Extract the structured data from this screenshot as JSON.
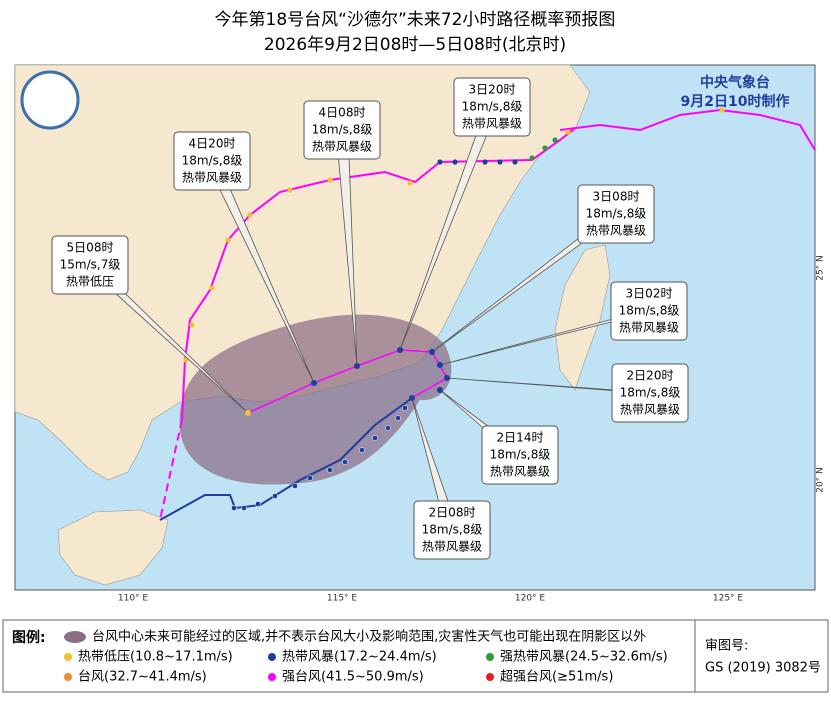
{
  "header": {
    "title": "今年第18号台风“沙德尔”未来72小时路径概率预报图",
    "subtitle": "2026年9月2日08时—5日08时(北京时)"
  },
  "agency": {
    "name": "中央气象台",
    "issued": "9月2日10时制作"
  },
  "callouts": [
    {
      "time": "5日08时",
      "wind": "15m/s,7级",
      "grade": "热带低压"
    },
    {
      "time": "4日20时",
      "wind": "18m/s,8级",
      "grade": "热带风暴级"
    },
    {
      "time": "4日08时",
      "wind": "18m/s,8级",
      "grade": "热带风暴级"
    },
    {
      "time": "3日20时",
      "wind": "18m/s,8级",
      "grade": "热带风暴级"
    },
    {
      "time": "3日08时",
      "wind": "18m/s,8级",
      "grade": "热带风暴级"
    },
    {
      "time": "3日02时",
      "wind": "18m/s,8级",
      "grade": "热带风暴级"
    },
    {
      "time": "2日20时",
      "wind": "18m/s,8级",
      "grade": "热带风暴级"
    },
    {
      "time": "2日14时",
      "wind": "18m/s,8级",
      "grade": "热带风暴级"
    },
    {
      "time": "2日08时",
      "wind": "18m/s,8级",
      "grade": "热带风暴级"
    }
  ],
  "axis_labels": {
    "lon": [
      "110° E",
      "115° E",
      "120° E",
      "125° E"
    ],
    "lat": [
      "25° N",
      "20° N"
    ]
  },
  "legend": {
    "title": "图例:",
    "area_note": "台风中心未来可能经过的区域,并不表示台风大小及影响范围,灾害性天气也可能出现在阴影区以外",
    "items": [
      {
        "label": "热带低压(10.8~17.1m/s)",
        "color": "#f2c12e"
      },
      {
        "label": "热带风暴(17.2~24.4m/s)",
        "color": "#1f3fa0"
      },
      {
        "label": "强热带风暴(24.5~32.6m/s)",
        "color": "#2e9a3a"
      },
      {
        "label": "台风(32.7~41.4m/s)",
        "color": "#f08a30"
      },
      {
        "label": "强台风(41.5~50.9m/s)",
        "color": "#ff00ff"
      },
      {
        "label": "超强台风(≥51m/s)",
        "color": "#e02020"
      }
    ]
  },
  "approval": {
    "label": "审图号:",
    "number": "GS (2019) 3082号"
  }
}
